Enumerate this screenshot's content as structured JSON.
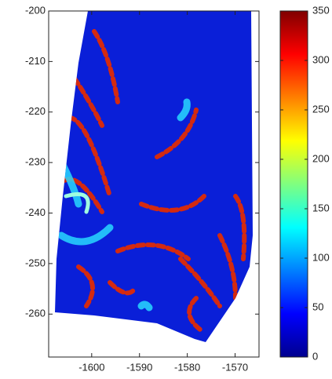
{
  "chart_data": {
    "type": "heatmap",
    "xlim": [
      -1609,
      -1565
    ],
    "xticks": [
      -1600,
      -1590,
      -1580,
      -1570
    ],
    "ylim": [
      -268.5,
      -200
    ],
    "yticks": [
      -260,
      -250,
      -240,
      -230,
      -220,
      -210,
      -200
    ],
    "colorbar": {
      "colormap": "jet",
      "lim": [
        0,
        350
      ],
      "ticks": [
        0,
        50,
        100,
        150,
        200,
        250,
        300,
        350
      ]
    }
  }
}
